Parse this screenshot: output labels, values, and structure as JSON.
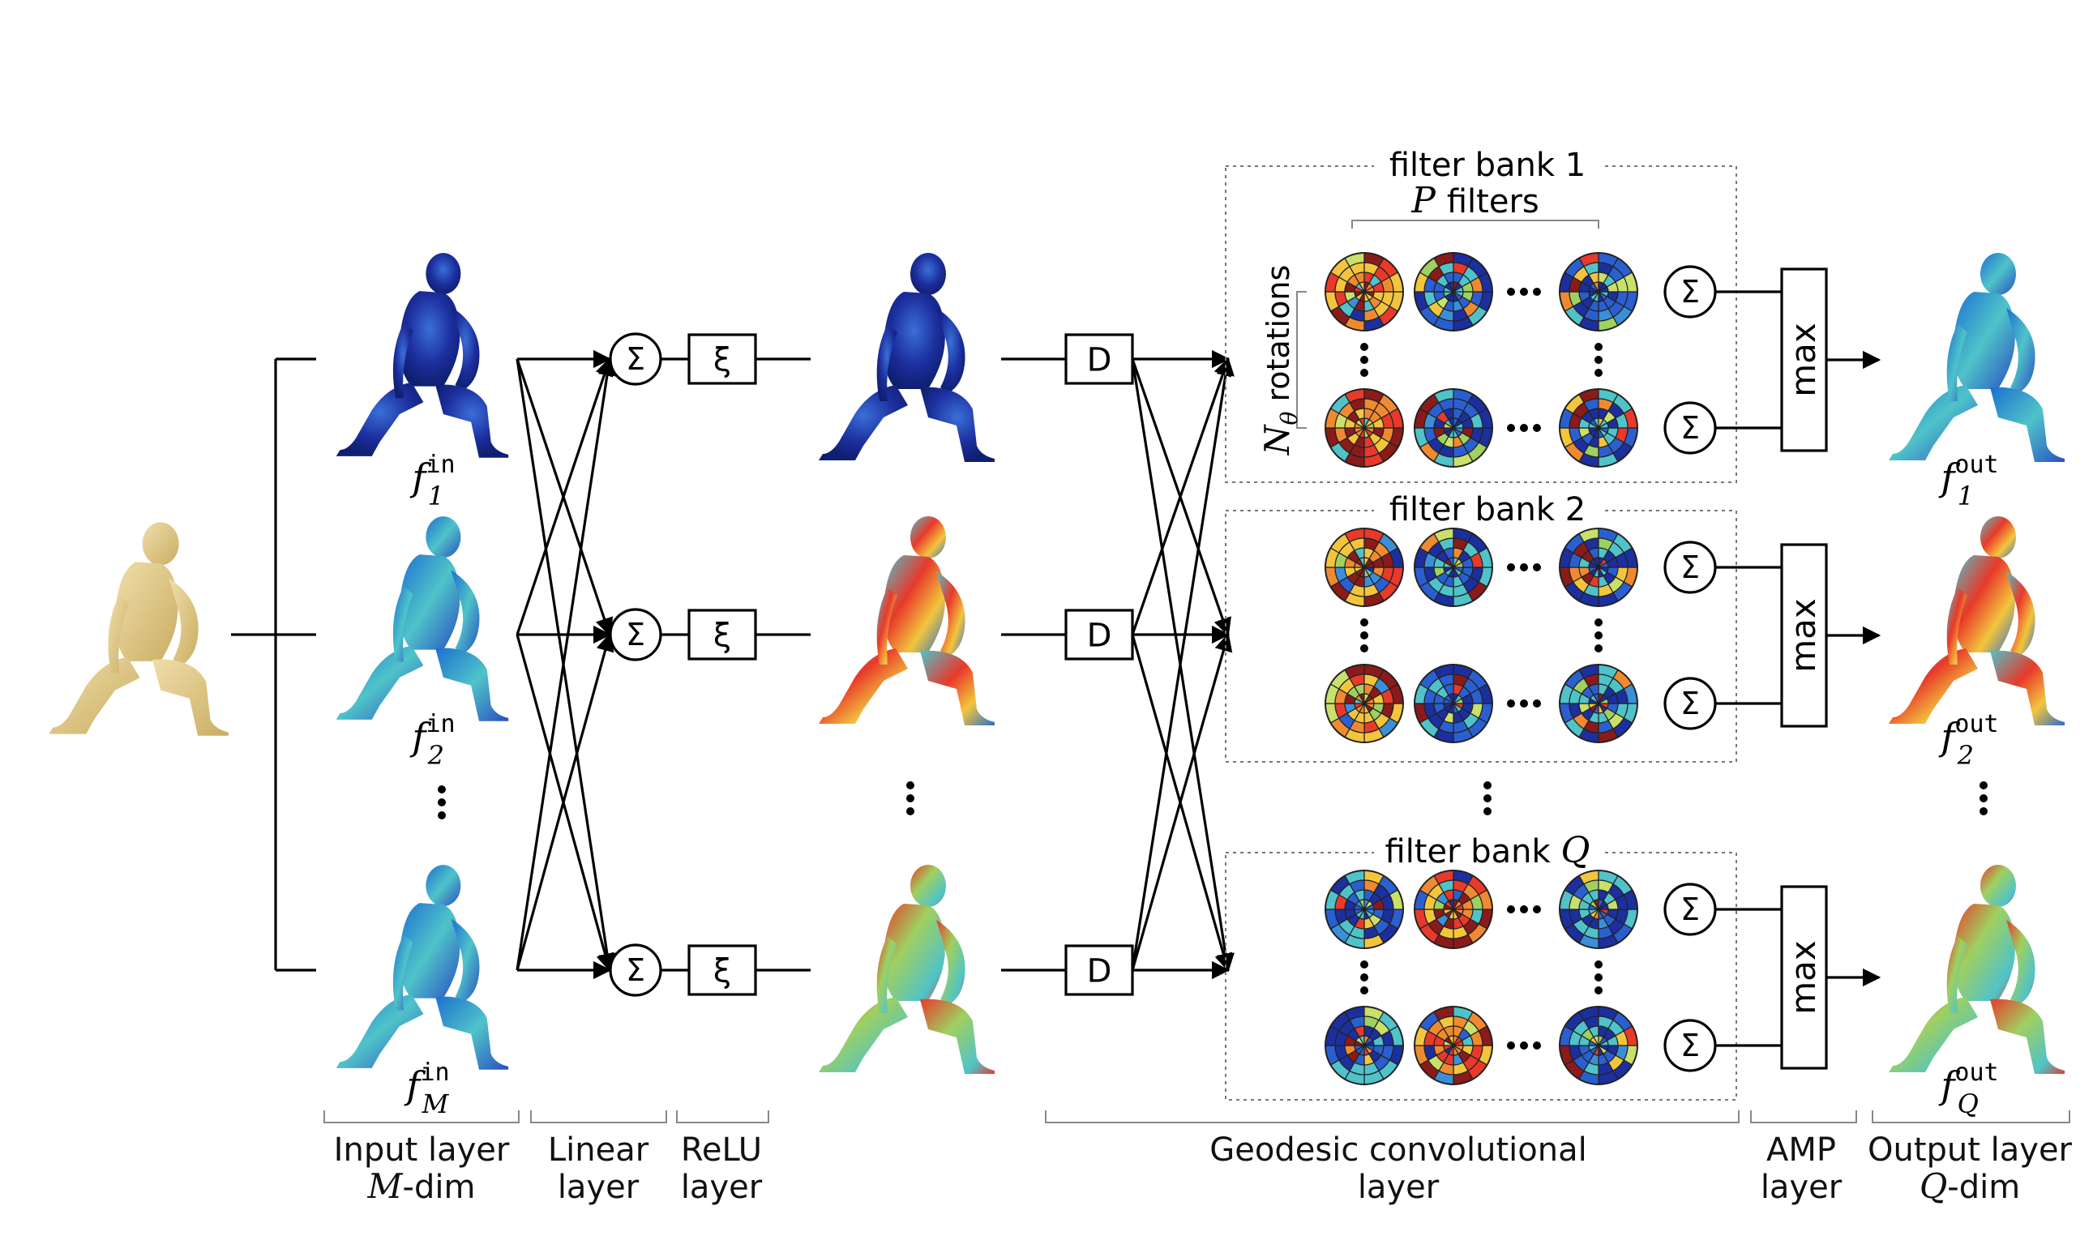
{
  "input_model": {
    "icon": "kneeling-human-mesh-icon",
    "color": "#e3cf8a"
  },
  "feature_maps": {
    "input": [
      {
        "label_base": "f",
        "sup": "in",
        "sub": "1"
      },
      {
        "label_base": "f",
        "sup": "in",
        "sub": "2"
      },
      {
        "label_base": "f",
        "sup": "in",
        "sub": "M"
      }
    ],
    "output": [
      {
        "label_base": "f",
        "sup": "out",
        "sub": "1"
      },
      {
        "label_base": "f",
        "sup": "out",
        "sub": "2"
      },
      {
        "label_base": "f",
        "sup": "out",
        "sub": "Q"
      }
    ]
  },
  "ops": {
    "sum": "Σ",
    "relu": "ξ",
    "descriptor": "D",
    "max": "max",
    "ellipsis": "···"
  },
  "filter_banks": [
    {
      "title": "filter bank 1"
    },
    {
      "title": "filter bank 2"
    },
    {
      "title_text": "filter bank",
      "title_var": "Q"
    }
  ],
  "bank1_annotations": {
    "filters_var": "P",
    "filters_text": "filters",
    "rotations_var": "N",
    "rotations_sub": "θ",
    "rotations_text": "rotations"
  },
  "layer_labels": [
    {
      "line1": "Input layer",
      "line2_var": "M",
      "line2_text": "-dim"
    },
    {
      "line1": "Linear",
      "line2": "layer"
    },
    {
      "line1": "ReLU",
      "line2": "layer"
    },
    {
      "line1": "Geodesic convolutional",
      "line2": "layer"
    },
    {
      "line1": "AMP",
      "line2": "layer"
    },
    {
      "line1": "Output layer",
      "line2_var": "Q",
      "line2_text": "-dim"
    }
  ],
  "colors": {
    "heat_low": "#1c2f9e",
    "heat_mid": "#4fc3c9",
    "heat_high": "#e8392a",
    "heat_warm": "#f2c53d"
  }
}
